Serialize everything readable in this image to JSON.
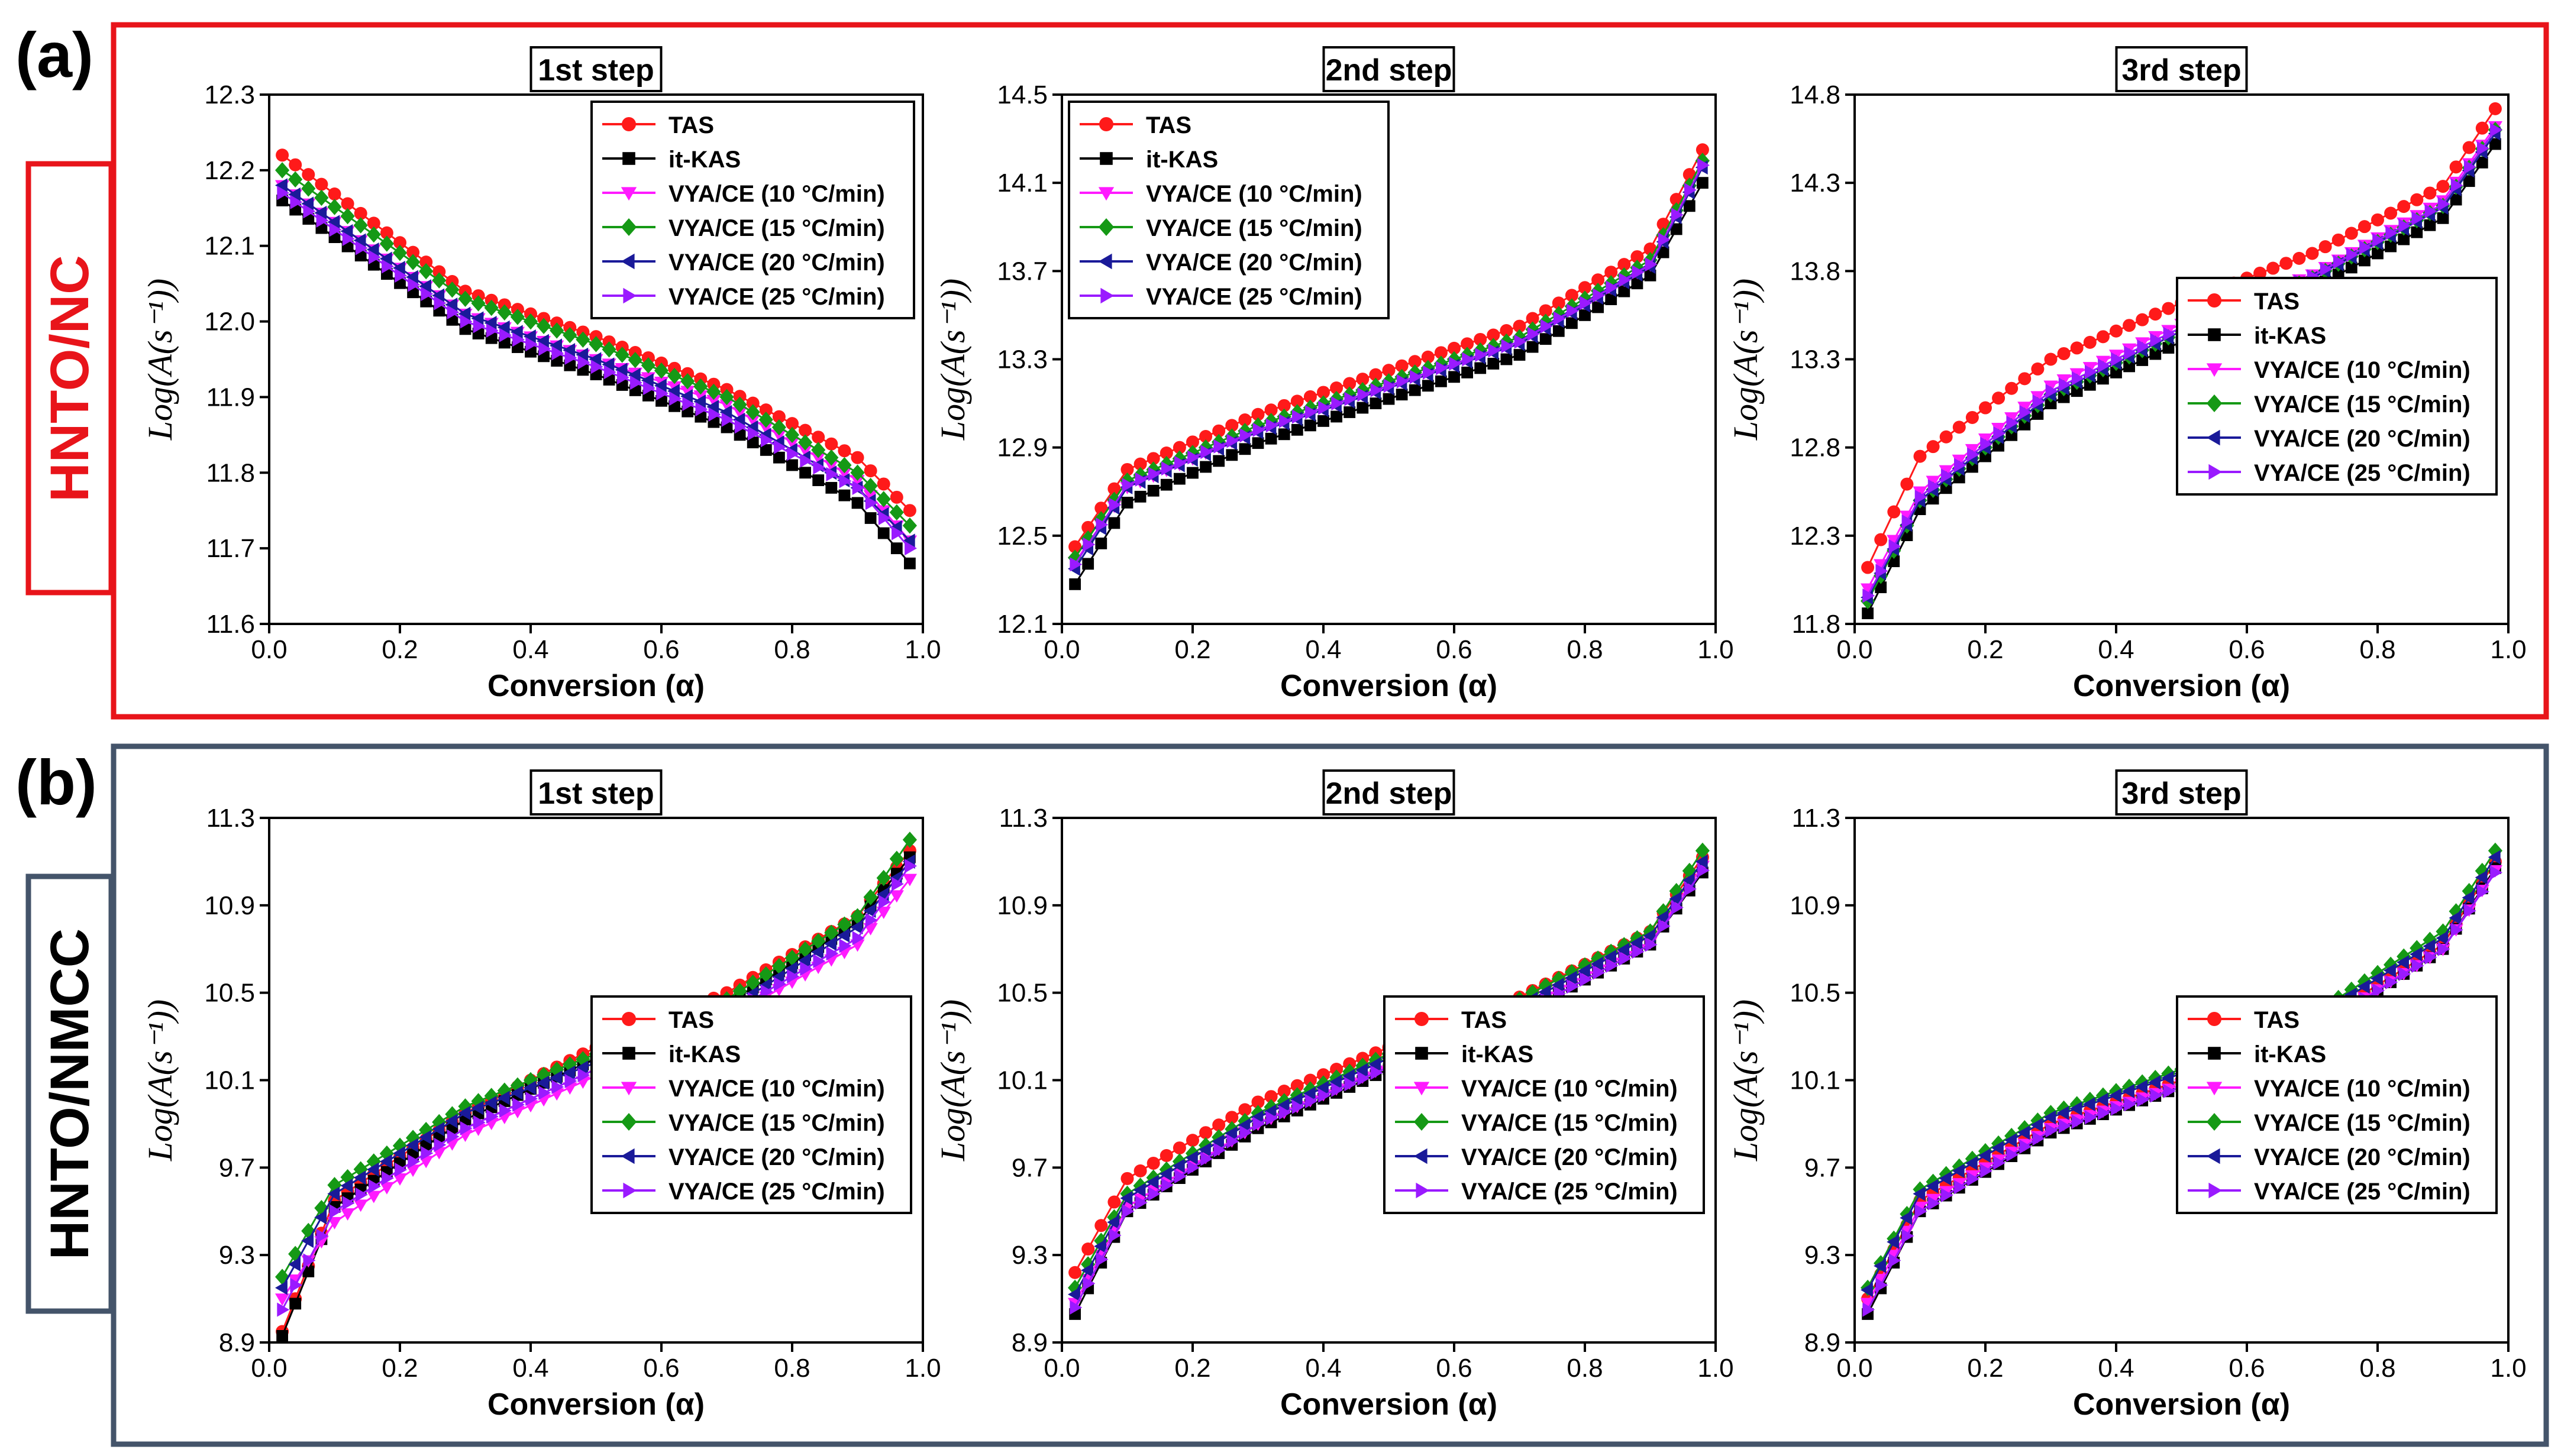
{
  "figure": {
    "panels": [
      {
        "letter": "(a)",
        "side_label": "HNTO/NC",
        "frame_color": "#e8141a"
      },
      {
        "letter": "(b)",
        "side_label": "HNTO/NMCC",
        "frame_color": "#44546a"
      }
    ],
    "common": {
      "xlabel": "Conversion (α)",
      "ylabel": "Log(A(s⁻¹))",
      "series_colors": [
        "#ff1a1a",
        "#000000",
        "#ff1aff",
        "#159915",
        "#1a1a99",
        "#9a1aff"
      ],
      "series_markers": [
        "circle",
        "square",
        "triangle-down",
        "diamond",
        "triangle-left",
        "triangle-right"
      ]
    }
  },
  "chart_data": [
    {
      "type": "line",
      "group": "(a)",
      "title": "1st step",
      "xlim": [
        0,
        1
      ],
      "ylim": [
        11.6,
        12.3
      ],
      "xticks": [
        "0.0",
        "0.2",
        "0.4",
        "0.6",
        "0.8",
        "1.0"
      ],
      "yticks": [
        "11.6",
        "11.7",
        "11.8",
        "11.9",
        "12.0",
        "12.1",
        "12.2",
        "12.3"
      ],
      "legend_position": "top-center",
      "x": [
        0.02,
        0.3,
        0.5,
        0.7,
        0.9,
        0.98
      ],
      "series": [
        {
          "name": "TAS",
          "values": [
            12.22,
            12.04,
            11.98,
            11.91,
            11.82,
            11.75
          ]
        },
        {
          "name": "it-KAS",
          "values": [
            12.16,
            11.99,
            11.93,
            11.86,
            11.76,
            11.68
          ]
        },
        {
          "name": "VYA/CE (10 °C/min)",
          "values": [
            12.18,
            12.01,
            11.95,
            11.89,
            11.79,
            11.71
          ]
        },
        {
          "name": "VYA/CE (15 °C/min)",
          "values": [
            12.2,
            12.03,
            11.97,
            11.9,
            11.8,
            11.73
          ]
        },
        {
          "name": "VYA/CE (20 °C/min)",
          "values": [
            12.18,
            12.01,
            11.95,
            11.88,
            11.78,
            11.71
          ]
        },
        {
          "name": "VYA/CE (25 °C/min)",
          "values": [
            12.17,
            12.0,
            11.94,
            11.87,
            11.78,
            11.7
          ]
        }
      ]
    },
    {
      "type": "line",
      "group": "(a)",
      "title": "2nd step",
      "xlim": [
        0,
        1
      ],
      "ylim": [
        12.1,
        14.5
      ],
      "xticks": [
        "0.0",
        "0.2",
        "0.4",
        "0.6",
        "0.8",
        "1.0"
      ],
      "yticks": [
        "12.1",
        "12.5",
        "12.9",
        "13.3",
        "13.7",
        "14.1",
        "14.5"
      ],
      "legend_position": "top-left",
      "x": [
        0.02,
        0.1,
        0.3,
        0.5,
        0.7,
        0.9,
        0.98
      ],
      "series": [
        {
          "name": "TAS",
          "values": [
            12.45,
            12.8,
            13.05,
            13.25,
            13.45,
            13.8,
            14.25
          ]
        },
        {
          "name": "it-KAS",
          "values": [
            12.28,
            12.65,
            12.92,
            13.12,
            13.32,
            13.68,
            14.1
          ]
        },
        {
          "name": "VYA/CE (10 °C/min)",
          "values": [
            12.38,
            12.72,
            12.98,
            13.18,
            13.38,
            13.73,
            14.18
          ]
        },
        {
          "name": "VYA/CE (15 °C/min)",
          "values": [
            12.4,
            12.75,
            13.0,
            13.2,
            13.4,
            13.75,
            14.2
          ]
        },
        {
          "name": "VYA/CE (20 °C/min)",
          "values": [
            12.35,
            12.72,
            12.97,
            13.17,
            13.37,
            13.72,
            14.17
          ]
        },
        {
          "name": "VYA/CE (25 °C/min)",
          "values": [
            12.37,
            12.73,
            12.98,
            13.18,
            13.38,
            13.73,
            14.18
          ]
        }
      ]
    },
    {
      "type": "line",
      "group": "(a)",
      "title": "3rd step",
      "xlim": [
        0,
        1
      ],
      "ylim": [
        11.8,
        14.8
      ],
      "xticks": [
        "0.0",
        "0.2",
        "0.4",
        "0.6",
        "0.8",
        "1.0"
      ],
      "yticks": [
        "11.8",
        "12.3",
        "12.8",
        "13.3",
        "13.8",
        "14.3",
        "14.8"
      ],
      "legend_position": "bottom-right",
      "x": [
        0.02,
        0.1,
        0.3,
        0.5,
        0.7,
        0.9,
        0.98
      ],
      "series": [
        {
          "name": "TAS",
          "values": [
            12.12,
            12.75,
            13.3,
            13.62,
            13.9,
            14.28,
            14.72
          ]
        },
        {
          "name": "it-KAS",
          "values": [
            11.86,
            12.45,
            13.05,
            13.4,
            13.7,
            14.1,
            14.52
          ]
        },
        {
          "name": "VYA/CE (10 °C/min)",
          "values": [
            12.0,
            12.55,
            13.15,
            13.5,
            13.78,
            14.2,
            14.62
          ]
        },
        {
          "name": "VYA/CE (15 °C/min)",
          "values": [
            11.93,
            12.5,
            13.1,
            13.46,
            13.76,
            14.17,
            14.6
          ]
        },
        {
          "name": "VYA/CE (20 °C/min)",
          "values": [
            11.95,
            12.5,
            13.1,
            13.46,
            13.76,
            14.16,
            14.58
          ]
        },
        {
          "name": "VYA/CE (25 °C/min)",
          "values": [
            11.96,
            12.52,
            13.12,
            13.48,
            13.77,
            14.18,
            14.6
          ]
        }
      ]
    },
    {
      "type": "line",
      "group": "(b)",
      "title": "1st step",
      "xlim": [
        0,
        1
      ],
      "ylim": [
        8.9,
        11.3
      ],
      "xticks": [
        "0.0",
        "0.2",
        "0.4",
        "0.6",
        "0.8",
        "1.0"
      ],
      "yticks": [
        "8.9",
        "9.3",
        "9.7",
        "10.1",
        "10.5",
        "10.9",
        "11.3"
      ],
      "legend_position": "bottom-right",
      "x": [
        0.02,
        0.1,
        0.3,
        0.5,
        0.7,
        0.9,
        0.98
      ],
      "series": [
        {
          "name": "TAS",
          "values": [
            8.95,
            9.55,
            9.95,
            10.25,
            10.5,
            10.85,
            11.15
          ]
        },
        {
          "name": "it-KAS",
          "values": [
            8.93,
            9.52,
            9.92,
            10.2,
            10.45,
            10.82,
            11.12
          ]
        },
        {
          "name": "VYA/CE (10 °C/min)",
          "values": [
            9.1,
            9.45,
            9.85,
            10.12,
            10.38,
            10.72,
            11.02
          ]
        },
        {
          "name": "VYA/CE (15 °C/min)",
          "values": [
            9.2,
            9.62,
            9.98,
            10.22,
            10.47,
            10.85,
            11.2
          ]
        },
        {
          "name": "VYA/CE (20 °C/min)",
          "values": [
            9.15,
            9.58,
            9.95,
            10.18,
            10.42,
            10.8,
            11.1
          ]
        },
        {
          "name": "VYA/CE (25 °C/min)",
          "values": [
            9.05,
            9.5,
            9.88,
            10.15,
            10.4,
            10.75,
            11.08
          ]
        }
      ]
    },
    {
      "type": "line",
      "group": "(b)",
      "title": "2nd step",
      "xlim": [
        0,
        1
      ],
      "ylim": [
        8.9,
        11.3
      ],
      "xticks": [
        "0.0",
        "0.2",
        "0.4",
        "0.6",
        "0.8",
        "1.0"
      ],
      "yticks": [
        "8.9",
        "9.3",
        "9.7",
        "10.1",
        "10.5",
        "10.9",
        "11.3"
      ],
      "legend_position": "bottom-right",
      "x": [
        0.02,
        0.1,
        0.3,
        0.5,
        0.7,
        0.9,
        0.98
      ],
      "series": [
        {
          "name": "TAS",
          "values": [
            9.22,
            9.65,
            10.0,
            10.25,
            10.48,
            10.78,
            11.12
          ]
        },
        {
          "name": "it-KAS",
          "values": [
            9.03,
            9.5,
            9.88,
            10.15,
            10.4,
            10.72,
            11.05
          ]
        },
        {
          "name": "VYA/CE (10 °C/min)",
          "values": [
            9.08,
            9.52,
            9.9,
            10.17,
            10.42,
            10.73,
            11.08
          ]
        },
        {
          "name": "VYA/CE (15 °C/min)",
          "values": [
            9.15,
            9.58,
            9.95,
            10.22,
            10.47,
            10.78,
            11.15
          ]
        },
        {
          "name": "VYA/CE (20 °C/min)",
          "values": [
            9.12,
            9.56,
            9.93,
            10.2,
            10.44,
            10.76,
            11.1
          ]
        },
        {
          "name": "VYA/CE (25 °C/min)",
          "values": [
            9.06,
            9.5,
            9.9,
            10.16,
            10.4,
            10.72,
            11.06
          ]
        }
      ]
    },
    {
      "type": "line",
      "group": "(b)",
      "title": "3rd step",
      "xlim": [
        0,
        1
      ],
      "ylim": [
        8.9,
        11.3
      ],
      "xticks": [
        "0.0",
        "0.2",
        "0.4",
        "0.6",
        "0.8",
        "1.0"
      ],
      "yticks": [
        "8.9",
        "9.3",
        "9.7",
        "10.1",
        "10.5",
        "10.9",
        "11.3"
      ],
      "legend_position": "bottom-right",
      "x": [
        0.02,
        0.1,
        0.3,
        0.5,
        0.7,
        0.9,
        0.98
      ],
      "series": [
        {
          "name": "TAS",
          "values": [
            9.1,
            9.55,
            9.9,
            10.1,
            10.35,
            10.72,
            11.1
          ]
        },
        {
          "name": "it-KAS",
          "values": [
            9.03,
            9.5,
            9.86,
            10.07,
            10.32,
            10.7,
            11.07
          ]
        },
        {
          "name": "VYA/CE (10 °C/min)",
          "values": [
            9.08,
            9.52,
            9.88,
            10.08,
            10.33,
            10.7,
            11.06
          ]
        },
        {
          "name": "VYA/CE (15 °C/min)",
          "values": [
            9.15,
            9.6,
            9.95,
            10.15,
            10.4,
            10.78,
            11.15
          ]
        },
        {
          "name": "VYA/CE (20 °C/min)",
          "values": [
            9.14,
            9.58,
            9.93,
            10.13,
            10.38,
            10.75,
            11.12
          ]
        },
        {
          "name": "VYA/CE (25 °C/min)",
          "values": [
            9.05,
            9.5,
            9.87,
            10.07,
            10.32,
            10.7,
            11.05
          ]
        }
      ]
    }
  ]
}
